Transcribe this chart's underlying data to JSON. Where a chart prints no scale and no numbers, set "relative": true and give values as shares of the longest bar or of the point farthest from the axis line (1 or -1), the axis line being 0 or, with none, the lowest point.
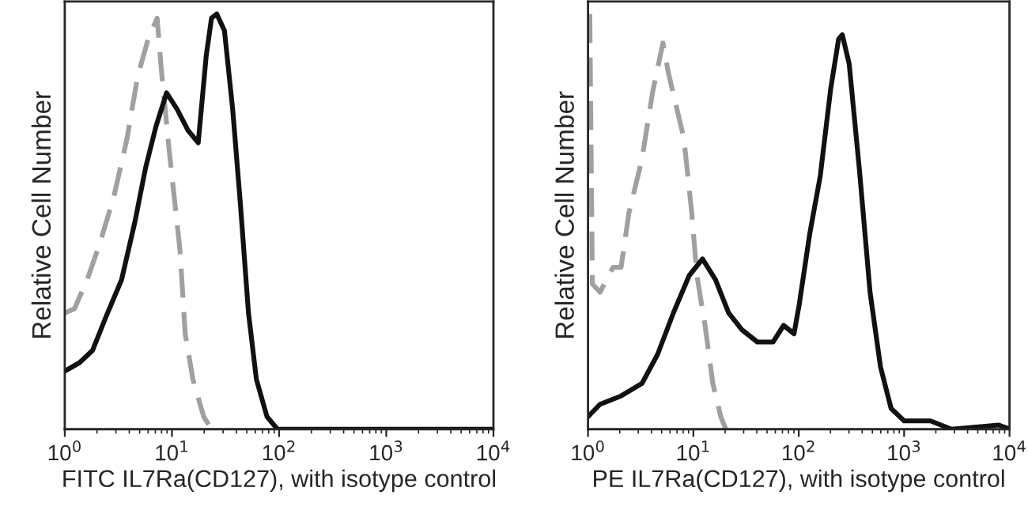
{
  "chart_data": [
    {
      "type": "line",
      "relative": true,
      "log": "x",
      "xlabel": "FITC IL7Ra(CD127), with isotype control",
      "ylabel": "Relative Cell Number",
      "xlim": [
        1,
        10000
      ],
      "xticks": [
        {
          "value": 1,
          "label": "10$^{0}$"
        },
        {
          "value": 10,
          "label": "10$^{1}$"
        },
        {
          "value": 100,
          "label": "10$^{2}$"
        },
        {
          "value": 1000,
          "label": "10$^{3}$"
        },
        {
          "value": 10000,
          "label": "10$^{4}$"
        }
      ],
      "grid": false,
      "legend": false,
      "marker": "none",
      "series": [
        {
          "color": "#a0a0a0",
          "line_style": "dashed",
          "x": [
            1,
            1.23,
            1.62,
            2.14,
            2.87,
            3.81,
            4.79,
            6.0,
            7.28,
            7.94,
            9.44,
            11.9,
            13.3,
            15.7,
            19.8,
            23.4
          ],
          "values": [
            0.28,
            0.29,
            0.36,
            0.45,
            0.56,
            0.7,
            0.85,
            0.94,
            0.99,
            0.87,
            0.67,
            0.43,
            0.23,
            0.12,
            0.03,
            0
          ]
        },
        {
          "color": "#111111",
          "line_style": "solid",
          "x": [
            1,
            1.37,
            1.82,
            2.42,
            3.39,
            4.52,
            5.68,
            7.11,
            8.91,
            11.2,
            14.1,
            17.6,
            20.9,
            23.4,
            26.2,
            30.9,
            36.9,
            43.6,
            51.8,
            61.4,
            77.1,
            96.6,
            10000
          ],
          "values": [
            0.14,
            0.16,
            0.19,
            0.27,
            0.36,
            0.5,
            0.63,
            0.73,
            0.81,
            0.77,
            0.72,
            0.69,
            0.9,
            0.99,
            1.0,
            0.96,
            0.77,
            0.54,
            0.28,
            0.12,
            0.03,
            0,
            0
          ]
        }
      ]
    },
    {
      "type": "line",
      "relative": true,
      "log": "x",
      "xlabel": "PE IL7Ra(CD127), with isotype control",
      "ylabel": "Relative Cell Number",
      "xlim": [
        1,
        10000
      ],
      "xticks": [
        {
          "value": 1,
          "label": "10$^{0}$"
        },
        {
          "value": 10,
          "label": "10$^{1}$"
        },
        {
          "value": 100,
          "label": "10$^{2}$"
        },
        {
          "value": 1000,
          "label": "10$^{3}$"
        },
        {
          "value": 10000,
          "label": "10$^{4}$"
        }
      ],
      "grid": false,
      "legend": false,
      "marker": "none",
      "series": [
        {
          "color": "#a0a0a0",
          "line_style": "dashed",
          "x": [
            1.04,
            1.1,
            1.3,
            1.73,
            2.06,
            2.44,
            3.25,
            4.09,
            5.14,
            5.77,
            6.85,
            8.13,
            9.66,
            10.8,
            12.9,
            15.3,
            18.2,
            20.3
          ],
          "values": [
            1.0,
            0.35,
            0.33,
            0.39,
            0.39,
            0.52,
            0.65,
            0.81,
            0.93,
            0.86,
            0.78,
            0.7,
            0.52,
            0.37,
            0.25,
            0.11,
            0.03,
            0
          ]
        },
        {
          "color": "#111111",
          "line_style": "solid",
          "x": [
            1,
            1.3,
            2.06,
            3.25,
            4.57,
            6.46,
            9.12,
            12.2,
            16.2,
            21.6,
            28.7,
            40.5,
            57,
            71.8,
            90.2,
            101,
            127,
            160,
            201,
            239,
            259,
            301,
            378,
            475,
            597,
            752,
            1000,
            1778,
            2818,
            7943,
            10000
          ],
          "values": [
            0.03,
            0.06,
            0.08,
            0.11,
            0.18,
            0.28,
            0.37,
            0.41,
            0.36,
            0.28,
            0.24,
            0.21,
            0.21,
            0.25,
            0.23,
            0.3,
            0.47,
            0.61,
            0.82,
            0.94,
            0.95,
            0.88,
            0.62,
            0.33,
            0.15,
            0.05,
            0.02,
            0.02,
            0,
            0.01,
            0
          ]
        }
      ]
    }
  ]
}
